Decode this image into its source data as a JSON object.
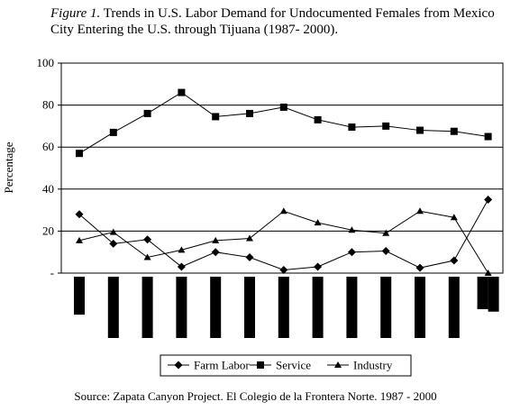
{
  "title": {
    "prefix": "Figure 1.",
    "text": "Trends in U.S. Labor Demand for Undocumented Females from Mexico City Entering the U.S. through Tijuana (1987- 2000)."
  },
  "source": "Source: Zapata Canyon Project. El Colegio de la Frontera Norte. 1987 - 2000",
  "chart_data": {
    "type": "line",
    "ylabel": "Percentage",
    "xlabel": "",
    "ylim": [
      0,
      100
    ],
    "yticks": [
      {
        "value": 100,
        "label": "100"
      },
      {
        "value": 80,
        "label": "80"
      },
      {
        "value": 60,
        "label": "60"
      },
      {
        "value": 40,
        "label": "40"
      },
      {
        "value": 20,
        "label": "20"
      },
      {
        "value": 0,
        "label": "-"
      }
    ],
    "grid": true,
    "legend_position": "bottom",
    "x_count": 13,
    "series": [
      {
        "name": "Farm Labor",
        "marker": "diamond",
        "values": [
          28,
          14,
          16,
          3,
          10,
          7.5,
          1.5,
          3,
          10,
          10.5,
          2.5,
          6,
          35
        ]
      },
      {
        "name": "Service",
        "marker": "square",
        "values": [
          57,
          67,
          76,
          86,
          74.5,
          76,
          79,
          73,
          69.5,
          70,
          68,
          67.5,
          65
        ]
      },
      {
        "name": "Industry",
        "marker": "triangle",
        "values": [
          15.5,
          19.5,
          7.5,
          11,
          15.5,
          16.5,
          29.5,
          24,
          20.5,
          19,
          29.5,
          26.5,
          0
        ]
      }
    ],
    "category_bars": {
      "bars": [
        {
          "heights": [
            0.62
          ]
        },
        {
          "heights": [
            1.0
          ]
        },
        {
          "heights": [
            1.0
          ]
        },
        {
          "heights": [
            1.0
          ]
        },
        {
          "heights": [
            1.0
          ]
        },
        {
          "heights": [
            1.0
          ]
        },
        {
          "heights": [
            1.0
          ]
        },
        {
          "heights": [
            1.0
          ]
        },
        {
          "heights": [
            1.0
          ]
        },
        {
          "heights": [
            1.0
          ]
        },
        {
          "heights": [
            1.0
          ]
        },
        {
          "heights": [
            1.0
          ]
        },
        {
          "heights": [
            0.53,
            0.57
          ]
        }
      ]
    }
  }
}
